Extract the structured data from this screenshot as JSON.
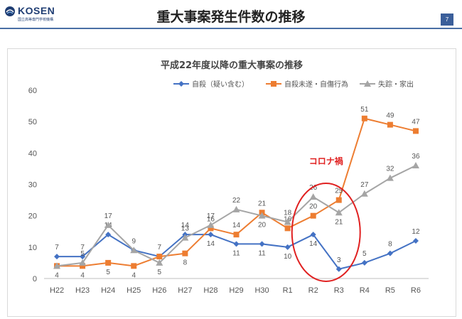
{
  "header": {
    "logo_text": "KOSEN",
    "logo_subtitle": "国立高等専門学校機構",
    "title": "重大事案発生件数の推移",
    "page_number": "7"
  },
  "colors": {
    "series1": "#4472c4",
    "series2": "#ed7d31",
    "series3": "#a5a5a5",
    "annotation": "#e02020",
    "header_rule": "#4a6fa5"
  },
  "chart_data": {
    "type": "line",
    "title": "平成22年度以降の重大事案の推移",
    "categories": [
      "H22",
      "H23",
      "H24",
      "H25",
      "H26",
      "H27",
      "H28",
      "H29",
      "H30",
      "R1",
      "R2",
      "R3",
      "R4",
      "R5",
      "R6"
    ],
    "ylim": [
      0,
      60
    ],
    "yticks": [
      0,
      10,
      20,
      30,
      40,
      50,
      60
    ],
    "grid": false,
    "legend_position": "top-right",
    "series": [
      {
        "name": "自殺（疑い含む）",
        "marker": "diamond",
        "values": [
          7,
          7,
          14,
          9,
          7,
          14,
          14,
          11,
          11,
          10,
          14,
          3,
          5,
          8,
          12
        ],
        "labels": [
          "7",
          "7",
          "14",
          "9",
          "7",
          "14",
          "14",
          "11",
          "11",
          "10",
          "14",
          "3",
          "5",
          "8",
          "12"
        ]
      },
      {
        "name": "自殺未遂・自傷行為",
        "marker": "square",
        "values": [
          4,
          4,
          5,
          4,
          7,
          8,
          16,
          14,
          21,
          16,
          20,
          25,
          51,
          49,
          47
        ],
        "labels": [
          "4",
          "4",
          "5",
          "4",
          "",
          "8",
          "16",
          "14",
          "21",
          "16",
          "20",
          "25",
          "51",
          "49",
          "47"
        ]
      },
      {
        "name": "失踪・家出",
        "marker": "triangle",
        "values": [
          4,
          5,
          17,
          9,
          5,
          13,
          17,
          22,
          20,
          18,
          26,
          21,
          27,
          32,
          36
        ],
        "labels": [
          "",
          "5",
          "17",
          "",
          "5",
          "13",
          "17",
          "22",
          "20",
          "18",
          "26",
          "21",
          "27",
          "32",
          "36"
        ]
      }
    ],
    "annotation": {
      "text": "コロナ禍",
      "categories": [
        "R2",
        "R3"
      ]
    }
  }
}
